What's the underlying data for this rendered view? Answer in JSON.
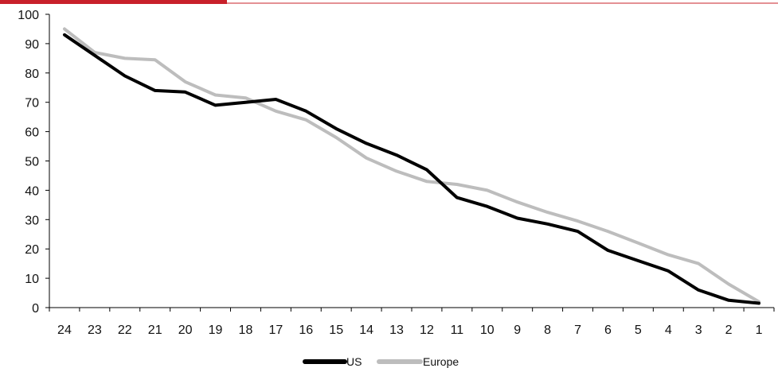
{
  "colors": {
    "top_bar_accent": "#c8202a",
    "top_bar_line": "#c8202a",
    "axis": "#000000",
    "us": "#000000",
    "europe": "#bdbdbd"
  },
  "chart_data": {
    "type": "line",
    "title": "",
    "xlabel": "",
    "ylabel": "",
    "x": [
      24,
      23,
      22,
      21,
      20,
      19,
      18,
      17,
      16,
      15,
      14,
      13,
      12,
      11,
      10,
      9,
      8,
      7,
      6,
      5,
      4,
      3,
      2,
      1
    ],
    "x_tick_labels": [
      "24",
      "23",
      "22",
      "21",
      "20",
      "19",
      "18",
      "17",
      "16",
      "15",
      "14",
      "13",
      "12",
      "11",
      "10",
      "9",
      "8",
      "7",
      "6",
      "5",
      "4",
      "3",
      "2",
      "1"
    ],
    "ylim": [
      0,
      100
    ],
    "y_ticks": [
      0,
      10,
      20,
      30,
      40,
      50,
      60,
      70,
      80,
      90,
      100
    ],
    "y_tick_labels": [
      "0",
      "10",
      "20",
      "30",
      "40",
      "50",
      "60",
      "70",
      "80",
      "90",
      "100"
    ],
    "grid": false,
    "legend_position": "bottom-center",
    "series": [
      {
        "name": "US",
        "values": [
          93,
          86,
          79,
          74,
          73.5,
          69,
          70,
          71,
          67,
          61,
          56,
          52,
          47,
          37.5,
          34.5,
          30.5,
          28.5,
          26,
          19.5,
          16,
          12.5,
          6,
          2.5,
          1.5
        ]
      },
      {
        "name": "Europe",
        "values": [
          95,
          87,
          85,
          84.5,
          77,
          72.5,
          71.5,
          67,
          64,
          58,
          51,
          46.5,
          43,
          42,
          40,
          36,
          32.5,
          29.5,
          26,
          22,
          18,
          15,
          8,
          2
        ]
      }
    ]
  }
}
